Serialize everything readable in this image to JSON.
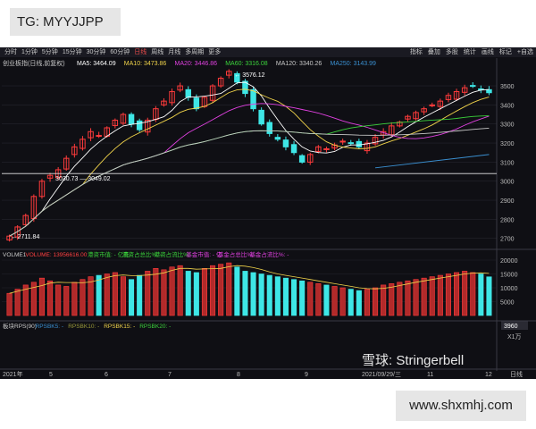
{
  "watermark_top": "TG: MYYJJPP",
  "watermark_bottom": "www.shxmhj.com",
  "toolbar": {
    "periods": [
      "分时",
      "1分钟",
      "5分钟",
      "15分钟",
      "30分钟",
      "60分钟",
      "日线",
      "周线",
      "月线",
      "多周期",
      "更多"
    ],
    "active_index": 6,
    "tools": [
      "指标",
      "叠加",
      "多股",
      "统计",
      "画线",
      "标记",
      "+自选"
    ]
  },
  "instrument": "创业板指(日线,前复权)",
  "ma_legend": [
    {
      "label": "MA5: 3464.09",
      "color": "#ffffff"
    },
    {
      "label": "MA10: 3473.86",
      "color": "#f0d34a"
    },
    {
      "label": "MA20: 3446.86",
      "color": "#e040e0"
    },
    {
      "label": "MA60: 3316.08",
      "color": "#3bd33b"
    },
    {
      "label": "MA120: 3340.26",
      "color": "#c8c8c8"
    },
    {
      "label": "MA250: 3143.99",
      "color": "#3a8fd0"
    }
  ],
  "annotations": {
    "high": "3576.12",
    "low": "2711.84",
    "mid": "3030.73 — 3049.02"
  },
  "volume_legend": [
    {
      "label": "VOLME1",
      "color": "#cccccc"
    },
    {
      "label": "VOLUME: 13956616.00",
      "color": "#ff4040"
    },
    {
      "label": "港资市值: - 亿元",
      "color": "#3bd33b"
    },
    {
      "label": "港资占总比%: -",
      "color": "#3bd33b"
    },
    {
      "label": "港资占流比%: -",
      "color": "#3bd33b"
    },
    {
      "label": "基金市值: - 亿",
      "color": "#e040e0"
    },
    {
      "label": "基金占总比%: -",
      "color": "#e040e0"
    },
    {
      "label": "基金占流比%: -",
      "color": "#e040e0"
    }
  ],
  "rps_legend": [
    {
      "label": "板块RPS(90)",
      "color": "#cccccc"
    },
    {
      "label": "RPSBK5: -",
      "color": "#3a8fd0"
    },
    {
      "label": "RPSBK10: -",
      "color": "#9a9a3a"
    },
    {
      "label": "RPSBK15: -",
      "color": "#f0d34a"
    },
    {
      "label": "RPSBK20: -",
      "color": "#3bd33b"
    }
  ],
  "price_axis": {
    "ticks": [
      "3500",
      "3400",
      "3300",
      "3200",
      "3100",
      "3000",
      "2900",
      "2800",
      "2700"
    ]
  },
  "volume_axis": {
    "ticks": [
      "20000",
      "15000",
      "10000",
      "5000"
    ],
    "current": "3960",
    "unit": "X1万"
  },
  "date_axis": {
    "labels": [
      "2021年",
      "5",
      "6",
      "7",
      "8",
      "9",
      "2021/09/29/三",
      "11",
      "12"
    ],
    "corner": "日线"
  },
  "brand_watermark": "雪球: Stringerbell",
  "chart_data": {
    "type": "candlestick",
    "title": "创业板指(日线,前复权)",
    "ylim": [
      2680,
      3580
    ],
    "x_labels": [
      "2021年",
      "5",
      "6",
      "7",
      "8",
      "9",
      "10",
      "11",
      "12"
    ],
    "close": [
      2711.84,
      2760,
      2820,
      2920,
      3000,
      3030.73,
      3060,
      3120,
      3180,
      3220,
      3260,
      3240,
      3280,
      3320,
      3350,
      3300,
      3270,
      3320,
      3380,
      3420,
      3470,
      3500,
      3440,
      3380,
      3440,
      3500,
      3540,
      3576.12,
      3520,
      3460,
      3380,
      3300,
      3250,
      3220,
      3180,
      3150,
      3100,
      3140,
      3180,
      3170,
      3190,
      3210,
      3200,
      3180,
      3200,
      3230,
      3260,
      3290,
      3310,
      3340,
      3360,
      3380,
      3400,
      3420,
      3450,
      3470,
      3490,
      3500,
      3480,
      3464.09
    ],
    "ma": {
      "MA5": 3464.09,
      "MA10": 3473.86,
      "MA20": 3446.86,
      "MA60": 3316.08,
      "MA120": 3340.26,
      "MA250": 3143.99
    },
    "volume_wan": [
      8000,
      9500,
      11000,
      12000,
      13500,
      12500,
      11000,
      10500,
      12000,
      13000,
      14000,
      14500,
      15000,
      15500,
      14000,
      13000,
      14500,
      16000,
      17000,
      16500,
      17500,
      18000,
      16000,
      15500,
      17000,
      18000,
      18500,
      19000,
      17500,
      16000,
      15500,
      15000,
      14500,
      14000,
      13500,
      13000,
      12500,
      12000,
      11500,
      11000,
      10500,
      10000,
      9500,
      9000,
      9500,
      10000,
      11000,
      11500,
      12000,
      12500,
      13000,
      13500,
      14000,
      14500,
      15000,
      15500,
      16000,
      15500,
      15000,
      13956.6
    ]
  }
}
